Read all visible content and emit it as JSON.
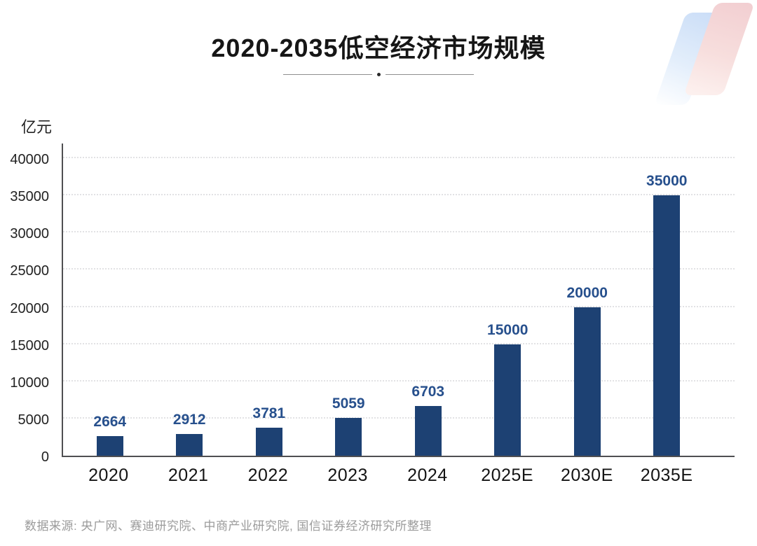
{
  "header": {
    "title": "2020-2035低空经济市场规模"
  },
  "y_axis": {
    "unit_label": "亿元"
  },
  "footer": {
    "source": "数据来源: 央广网、赛迪研究院、中商产业研究院, 国信证券经济研究所整理"
  },
  "colors": {
    "bar": "#1d4173",
    "value_label": "#27508d",
    "title_text": "#161616",
    "axis_line": "#4f4f52",
    "gridline": "#e2e2e4",
    "tick_text": "#222222",
    "source_text": "#9b9b9b",
    "decor_blue": "#caddf7",
    "decor_pink": "#f2ced1"
  },
  "chart_data": {
    "type": "bar",
    "title": "2020-2035低空经济市场规模",
    "categories": [
      "2020",
      "2021",
      "2022",
      "2023",
      "2024",
      "2025E",
      "2030E",
      "2035E"
    ],
    "values": [
      2664,
      2912,
      3781,
      5059,
      6703,
      15000,
      20000,
      35000
    ],
    "value_labels": [
      "2664",
      "2912",
      "3781",
      "5059",
      "6703",
      "15000",
      "20000",
      "35000"
    ],
    "xlabel": "",
    "ylabel": "亿元",
    "ylim": [
      0,
      40000
    ],
    "yticks": [
      0,
      5000,
      10000,
      15000,
      20000,
      25000,
      30000,
      35000,
      40000
    ],
    "grid": "horizontal-dotted",
    "legend": "none",
    "bar_color": "#1d4173"
  }
}
